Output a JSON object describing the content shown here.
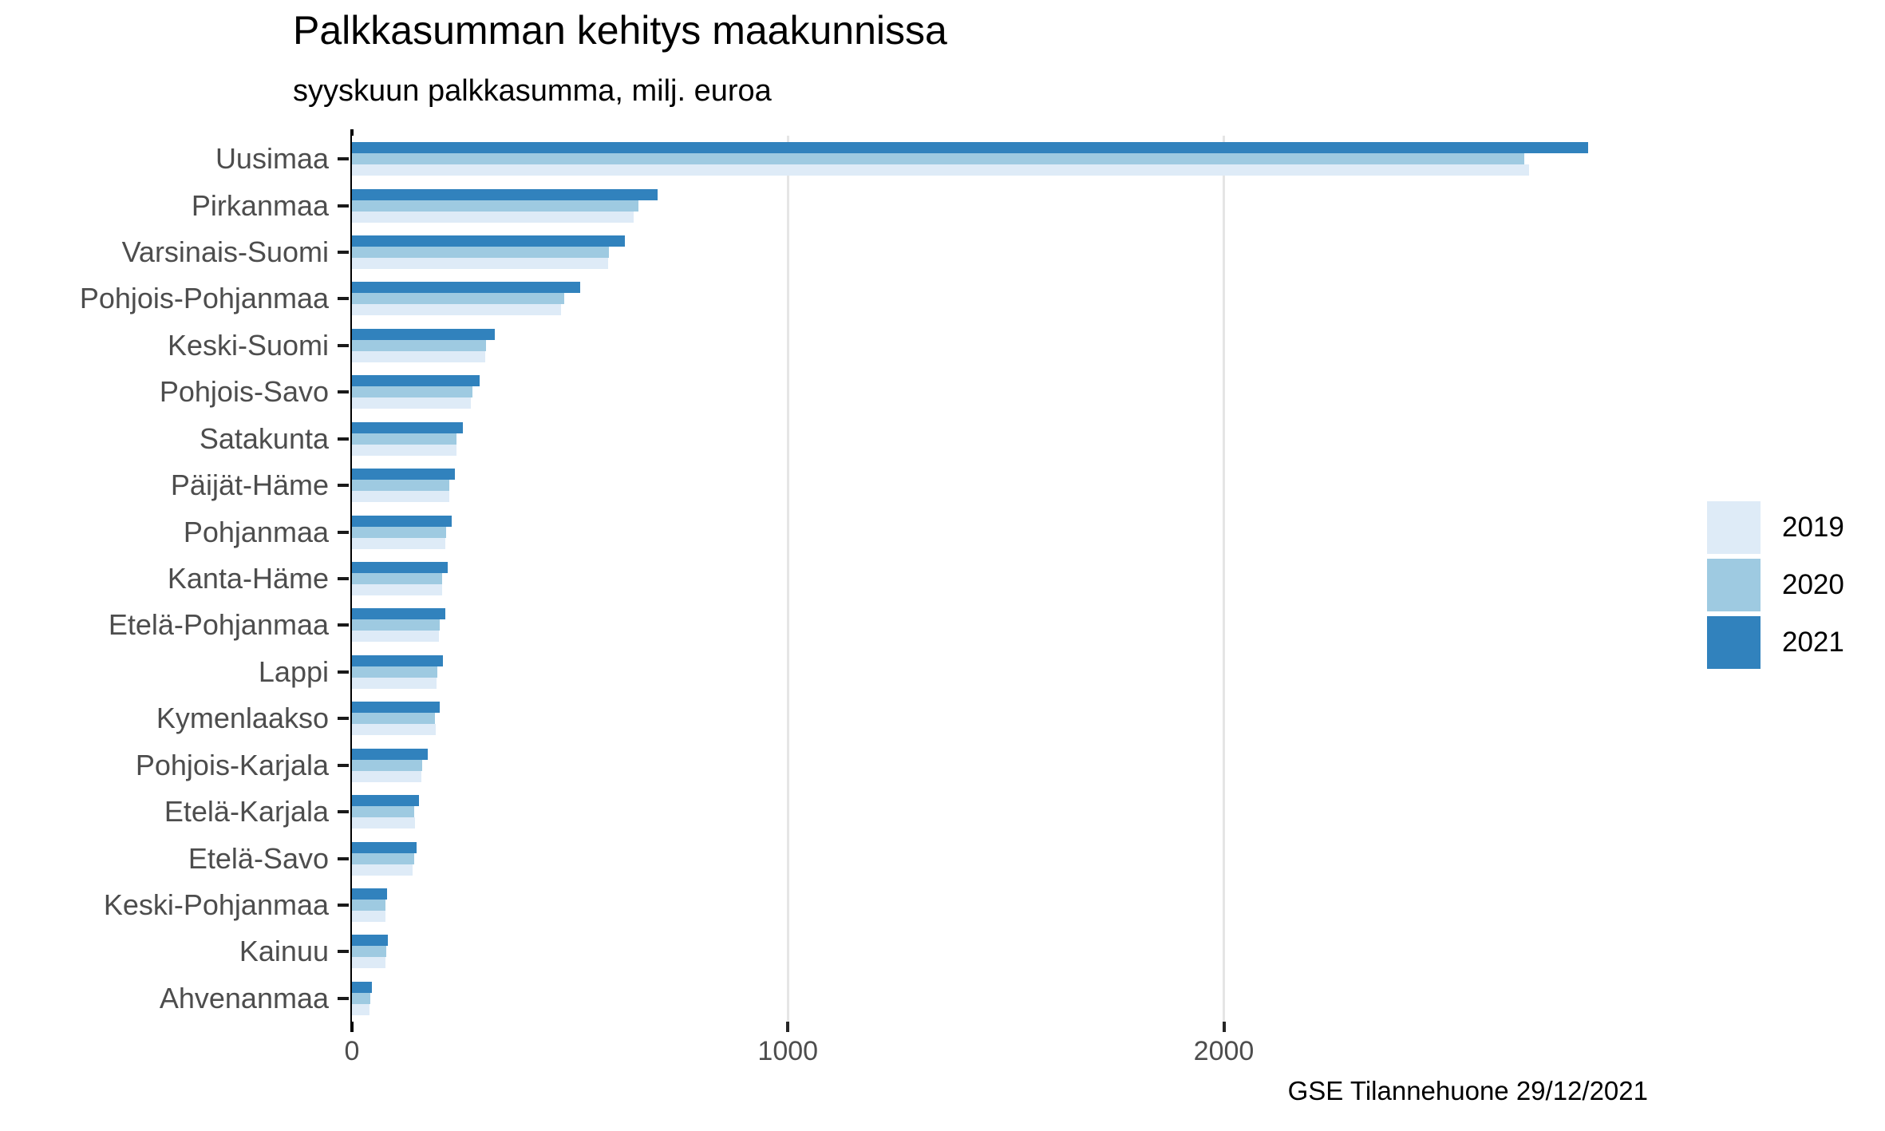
{
  "chart_data": {
    "type": "bar",
    "orientation": "horizontal",
    "title": "Palkkasumman kehitys maakunnissa",
    "subtitle": "syyskuun palkkasumma, milj. euroa",
    "caption": "GSE Tilannehuone 29/12/2021",
    "value_unit": "milj. euroa",
    "categories": [
      "Uusimaa",
      "Pirkanmaa",
      "Varsinais-Suomi",
      "Pohjois-Pohjanmaa",
      "Keski-Suomi",
      "Pohjois-Savo",
      "Satakunta",
      "Päijät-Häme",
      "Pohjanmaa",
      "Kanta-Häme",
      "Etelä-Pohjanmaa",
      "Lappi",
      "Kymenlaakso",
      "Pohjois-Karjala",
      "Etelä-Karjala",
      "Etelä-Savo",
      "Keski-Pohjanmaa",
      "Kainuu",
      "Ahvenanmaa"
    ],
    "series": [
      {
        "name": "2019",
        "color": "#deebf7",
        "values": [
          2700,
          646,
          587,
          480,
          306,
          273,
          239,
          223,
          214,
          207,
          200,
          194,
          193,
          160,
          145,
          140,
          76,
          76,
          41
        ]
      },
      {
        "name": "2020",
        "color": "#9ecae1",
        "values": [
          2690,
          657,
          589,
          487,
          307,
          277,
          240,
          224,
          216,
          207,
          202,
          196,
          190,
          162,
          142,
          143,
          76,
          78,
          42
        ]
      },
      {
        "name": "2021",
        "color": "#3182bd",
        "values": [
          2835,
          702,
          626,
          524,
          328,
          293,
          255,
          237,
          229,
          219,
          215,
          208,
          201,
          173,
          153,
          148,
          80,
          82,
          45
        ]
      }
    ],
    "bar_order_top_to_bottom": [
      "2021",
      "2020",
      "2019"
    ],
    "x_axis": {
      "ticks": [
        0,
        1000,
        2000
      ],
      "tick_labels": [
        "0",
        "1000",
        "2000"
      ],
      "range": [
        0,
        3037
      ],
      "grid": true
    },
    "legend": {
      "position": "right",
      "entries": [
        "2019",
        "2020",
        "2021"
      ]
    }
  },
  "colors": {
    "background": "#ffffff",
    "title_text": "#000000",
    "axis_text": "#4d4d4d",
    "axis_line": "#000000",
    "tick_mark": "#262626",
    "gridline": "#e5e5e5"
  }
}
